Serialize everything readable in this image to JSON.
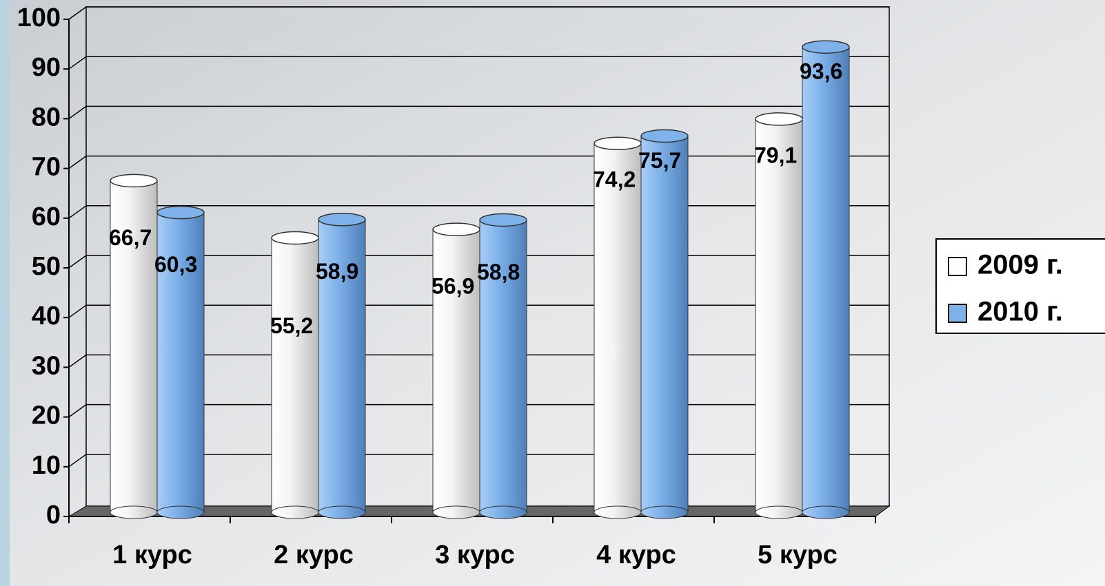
{
  "chart_data": {
    "type": "bar3d",
    "categories": [
      "1 курс",
      "2 курс",
      "3 курс",
      "4 курс",
      "5 курс"
    ],
    "series": [
      {
        "name": "2009 г.",
        "color": "#ffffff",
        "values": [
          66.7,
          55.2,
          56.9,
          74.2,
          79.1
        ],
        "value_labels": [
          "66,7",
          "55,2",
          "56,9",
          "74,2",
          "79,1"
        ]
      },
      {
        "name": "2010 г.",
        "color": "#7fb2ea",
        "values": [
          60.3,
          58.9,
          58.8,
          75.7,
          93.6
        ],
        "value_labels": [
          "60,3",
          "58,9",
          "58,8",
          "75,7",
          "93,6"
        ]
      }
    ],
    "ylim": [
      0,
      100
    ],
    "yticks": [
      0,
      10,
      20,
      30,
      40,
      50,
      60,
      70,
      80,
      90,
      100
    ],
    "grid": true,
    "legend": "right"
  }
}
